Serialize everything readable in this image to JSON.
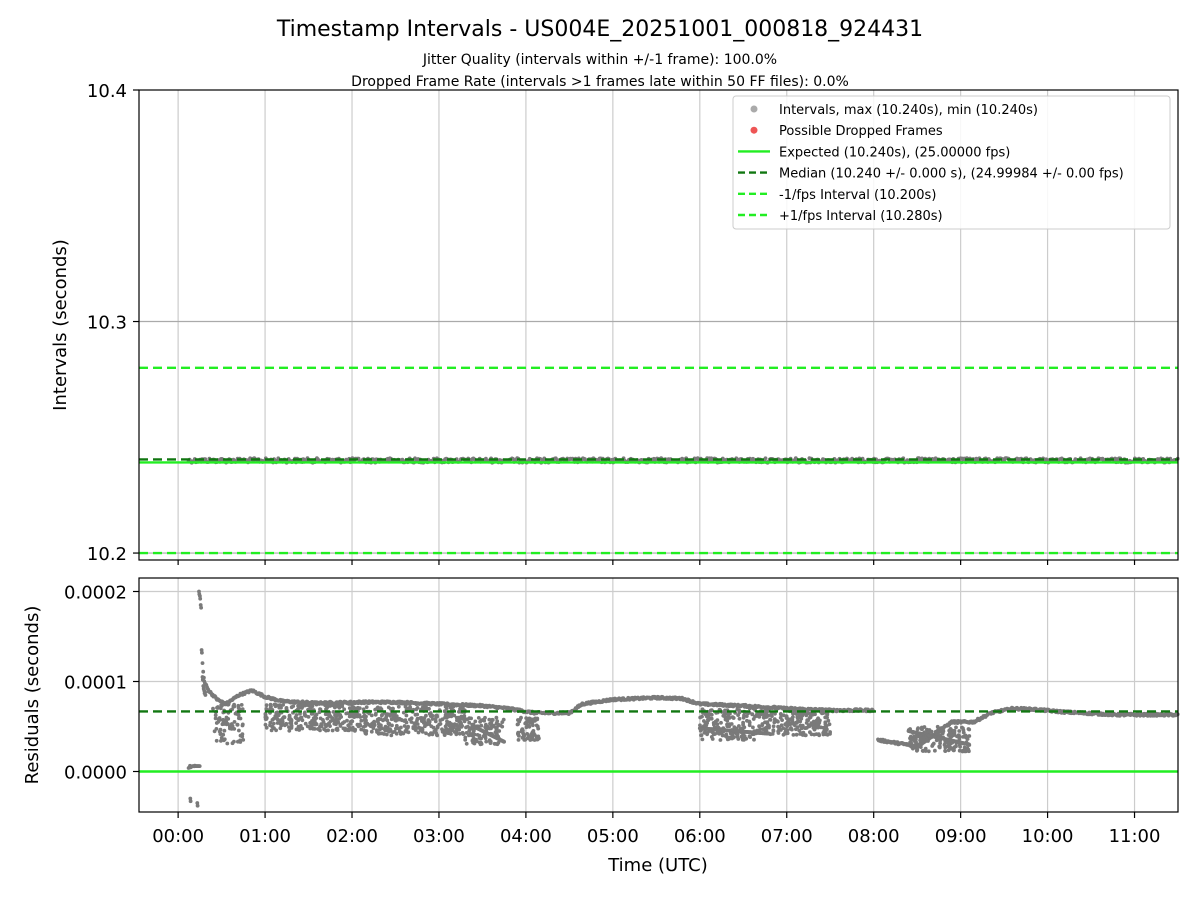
{
  "chart_data": {
    "title": "Timestamp Intervals - US004E_20251001_000818_924431",
    "subtitle_1": "Jitter Quality (intervals within +/-1 frame): 100.0%",
    "subtitle_2": "Dropped Frame Rate (intervals >1 frames late within 50 FF files): 0.0%",
    "colors": {
      "points": "#7a7a7a",
      "legend_points": "#aaaaaa",
      "dropped": "#ee5555",
      "expected": "#22ee22",
      "median": "#117711",
      "fps_bounds": "#22ee22",
      "residual_zero": "#22ee22",
      "grid": "#cccccc"
    },
    "top": {
      "type": "scatter",
      "ylabel": "Intervals (seconds)",
      "xlim_hours": [
        -0.45,
        11.5
      ],
      "ylim": [
        10.197,
        10.4
      ],
      "yticks": [
        10.2,
        10.3,
        10.4
      ],
      "ytick_labels": [
        "10.2",
        "10.3",
        "10.4"
      ],
      "expected": 10.24,
      "median": 10.24,
      "minus_interval": 10.2,
      "plus_interval": 10.28,
      "interval_value": 10.24,
      "data_start_hours": 0.12,
      "data_end_hours": 11.5,
      "legend": [
        {
          "kind": "dot",
          "color_key": "legend_points",
          "label": "Intervals, max (10.240s), min (10.240s)"
        },
        {
          "kind": "dot",
          "color_key": "dropped",
          "label": "Possible Dropped Frames"
        },
        {
          "kind": "solid",
          "color_key": "expected",
          "label": "Expected (10.240s), (25.00000 fps)"
        },
        {
          "kind": "dashed",
          "color_key": "median",
          "label": "Median (10.240 +/- 0.000 s), (24.99984 +/- 0.00 fps)"
        },
        {
          "kind": "dashed",
          "color_key": "fps_bounds",
          "label": "-1/fps Interval (10.200s)"
        },
        {
          "kind": "dashed",
          "color_key": "fps_bounds",
          "label": "+1/fps Interval (10.280s)"
        }
      ]
    },
    "bottom": {
      "type": "scatter",
      "ylabel": "Residuals (seconds)",
      "xlabel": "Time (UTC)",
      "xlim_hours": [
        -0.45,
        11.5
      ],
      "ylim": [
        -4.5e-05,
        0.000215
      ],
      "yticks": [
        0.0,
        0.0001,
        0.0002
      ],
      "ytick_labels": [
        "0.0000",
        "0.0001",
        "0.0002"
      ],
      "zero_line": 0.0,
      "median_residual": 6.67e-05,
      "trend": [
        [
          0.12,
          5e-06
        ],
        [
          0.2,
          6e-06
        ],
        [
          0.25,
          0.0002
        ],
        [
          0.28,
          0.00012
        ],
        [
          0.3,
          0.0001
        ],
        [
          0.35,
          9e-05
        ],
        [
          0.45,
          8e-05
        ],
        [
          0.55,
          7.5e-05
        ],
        [
          0.7,
          8.5e-05
        ],
        [
          0.85,
          9e-05
        ],
        [
          1.0,
          8.3e-05
        ],
        [
          1.2,
          7.8e-05
        ],
        [
          1.6,
          7.6e-05
        ],
        [
          2.1,
          7.7e-05
        ],
        [
          2.5,
          7.7e-05
        ],
        [
          3.0,
          7.5e-05
        ],
        [
          3.5,
          7.3e-05
        ],
        [
          3.8,
          7e-05
        ],
        [
          4.1,
          6.5e-05
        ],
        [
          4.5,
          6.5e-05
        ],
        [
          4.65,
          7.5e-05
        ],
        [
          5.0,
          8e-05
        ],
        [
          5.5,
          8.2e-05
        ],
        [
          5.8,
          8.1e-05
        ],
        [
          6.0,
          7.5e-05
        ],
        [
          6.5,
          7.3e-05
        ],
        [
          7.0,
          7e-05
        ],
        [
          7.5,
          6.8e-05
        ],
        [
          8.0,
          6.8e-05
        ],
        [
          8.05,
          3.5e-05
        ],
        [
          8.5,
          2.8e-05
        ],
        [
          8.9,
          5.5e-05
        ],
        [
          9.15,
          5.5e-05
        ],
        [
          9.35,
          6.5e-05
        ],
        [
          9.6,
          7e-05
        ],
        [
          9.85,
          6.9e-05
        ],
        [
          10.2,
          6.6e-05
        ],
        [
          10.8,
          6.3e-05
        ],
        [
          11.5,
          6.3e-05
        ]
      ],
      "scatter_bands": [
        {
          "x": [
            0.4,
            0.75
          ],
          "y": [
            3e-05,
            7.5e-05
          ]
        },
        {
          "x": [
            1.0,
            2.1
          ],
          "y": [
            4.5e-05,
            7.5e-05
          ]
        },
        {
          "x": [
            2.1,
            3.3
          ],
          "y": [
            4e-05,
            7.2e-05
          ]
        },
        {
          "x": [
            3.3,
            3.75
          ],
          "y": [
            3e-05,
            6e-05
          ]
        },
        {
          "x": [
            3.9,
            4.15
          ],
          "y": [
            3.5e-05,
            6e-05
          ]
        },
        {
          "x": [
            6.0,
            6.7
          ],
          "y": [
            3.5e-05,
            7e-05
          ]
        },
        {
          "x": [
            6.7,
            7.5
          ],
          "y": [
            4e-05,
            6.8e-05
          ]
        },
        {
          "x": [
            8.4,
            9.1
          ],
          "y": [
            2.2e-05,
            5e-05
          ]
        }
      ],
      "spikes": [
        [
          0.14,
          -3e-05
        ],
        [
          0.22,
          -3.5e-05
        ],
        [
          0.24,
          0.0002
        ],
        [
          0.25,
          0.000195
        ],
        [
          0.26,
          0.000185
        ],
        [
          0.27,
          0.000135
        ],
        [
          0.28,
          0.000105
        ],
        [
          0.29,
          9.5e-05
        ],
        [
          0.3,
          9e-05
        ],
        [
          0.31,
          8.8e-05
        ]
      ],
      "lower_segment": [
        [
          4.05,
          3.5e-05
        ],
        [
          4.1,
          3.5e-05
        ]
      ]
    },
    "xticks": [
      0,
      1,
      2,
      3,
      4,
      5,
      6,
      7,
      8,
      9,
      10,
      11
    ],
    "xtick_labels": [
      "00:00",
      "01:00",
      "02:00",
      "03:00",
      "04:00",
      "05:00",
      "06:00",
      "07:00",
      "08:00",
      "09:00",
      "10:00",
      "11:00"
    ]
  }
}
